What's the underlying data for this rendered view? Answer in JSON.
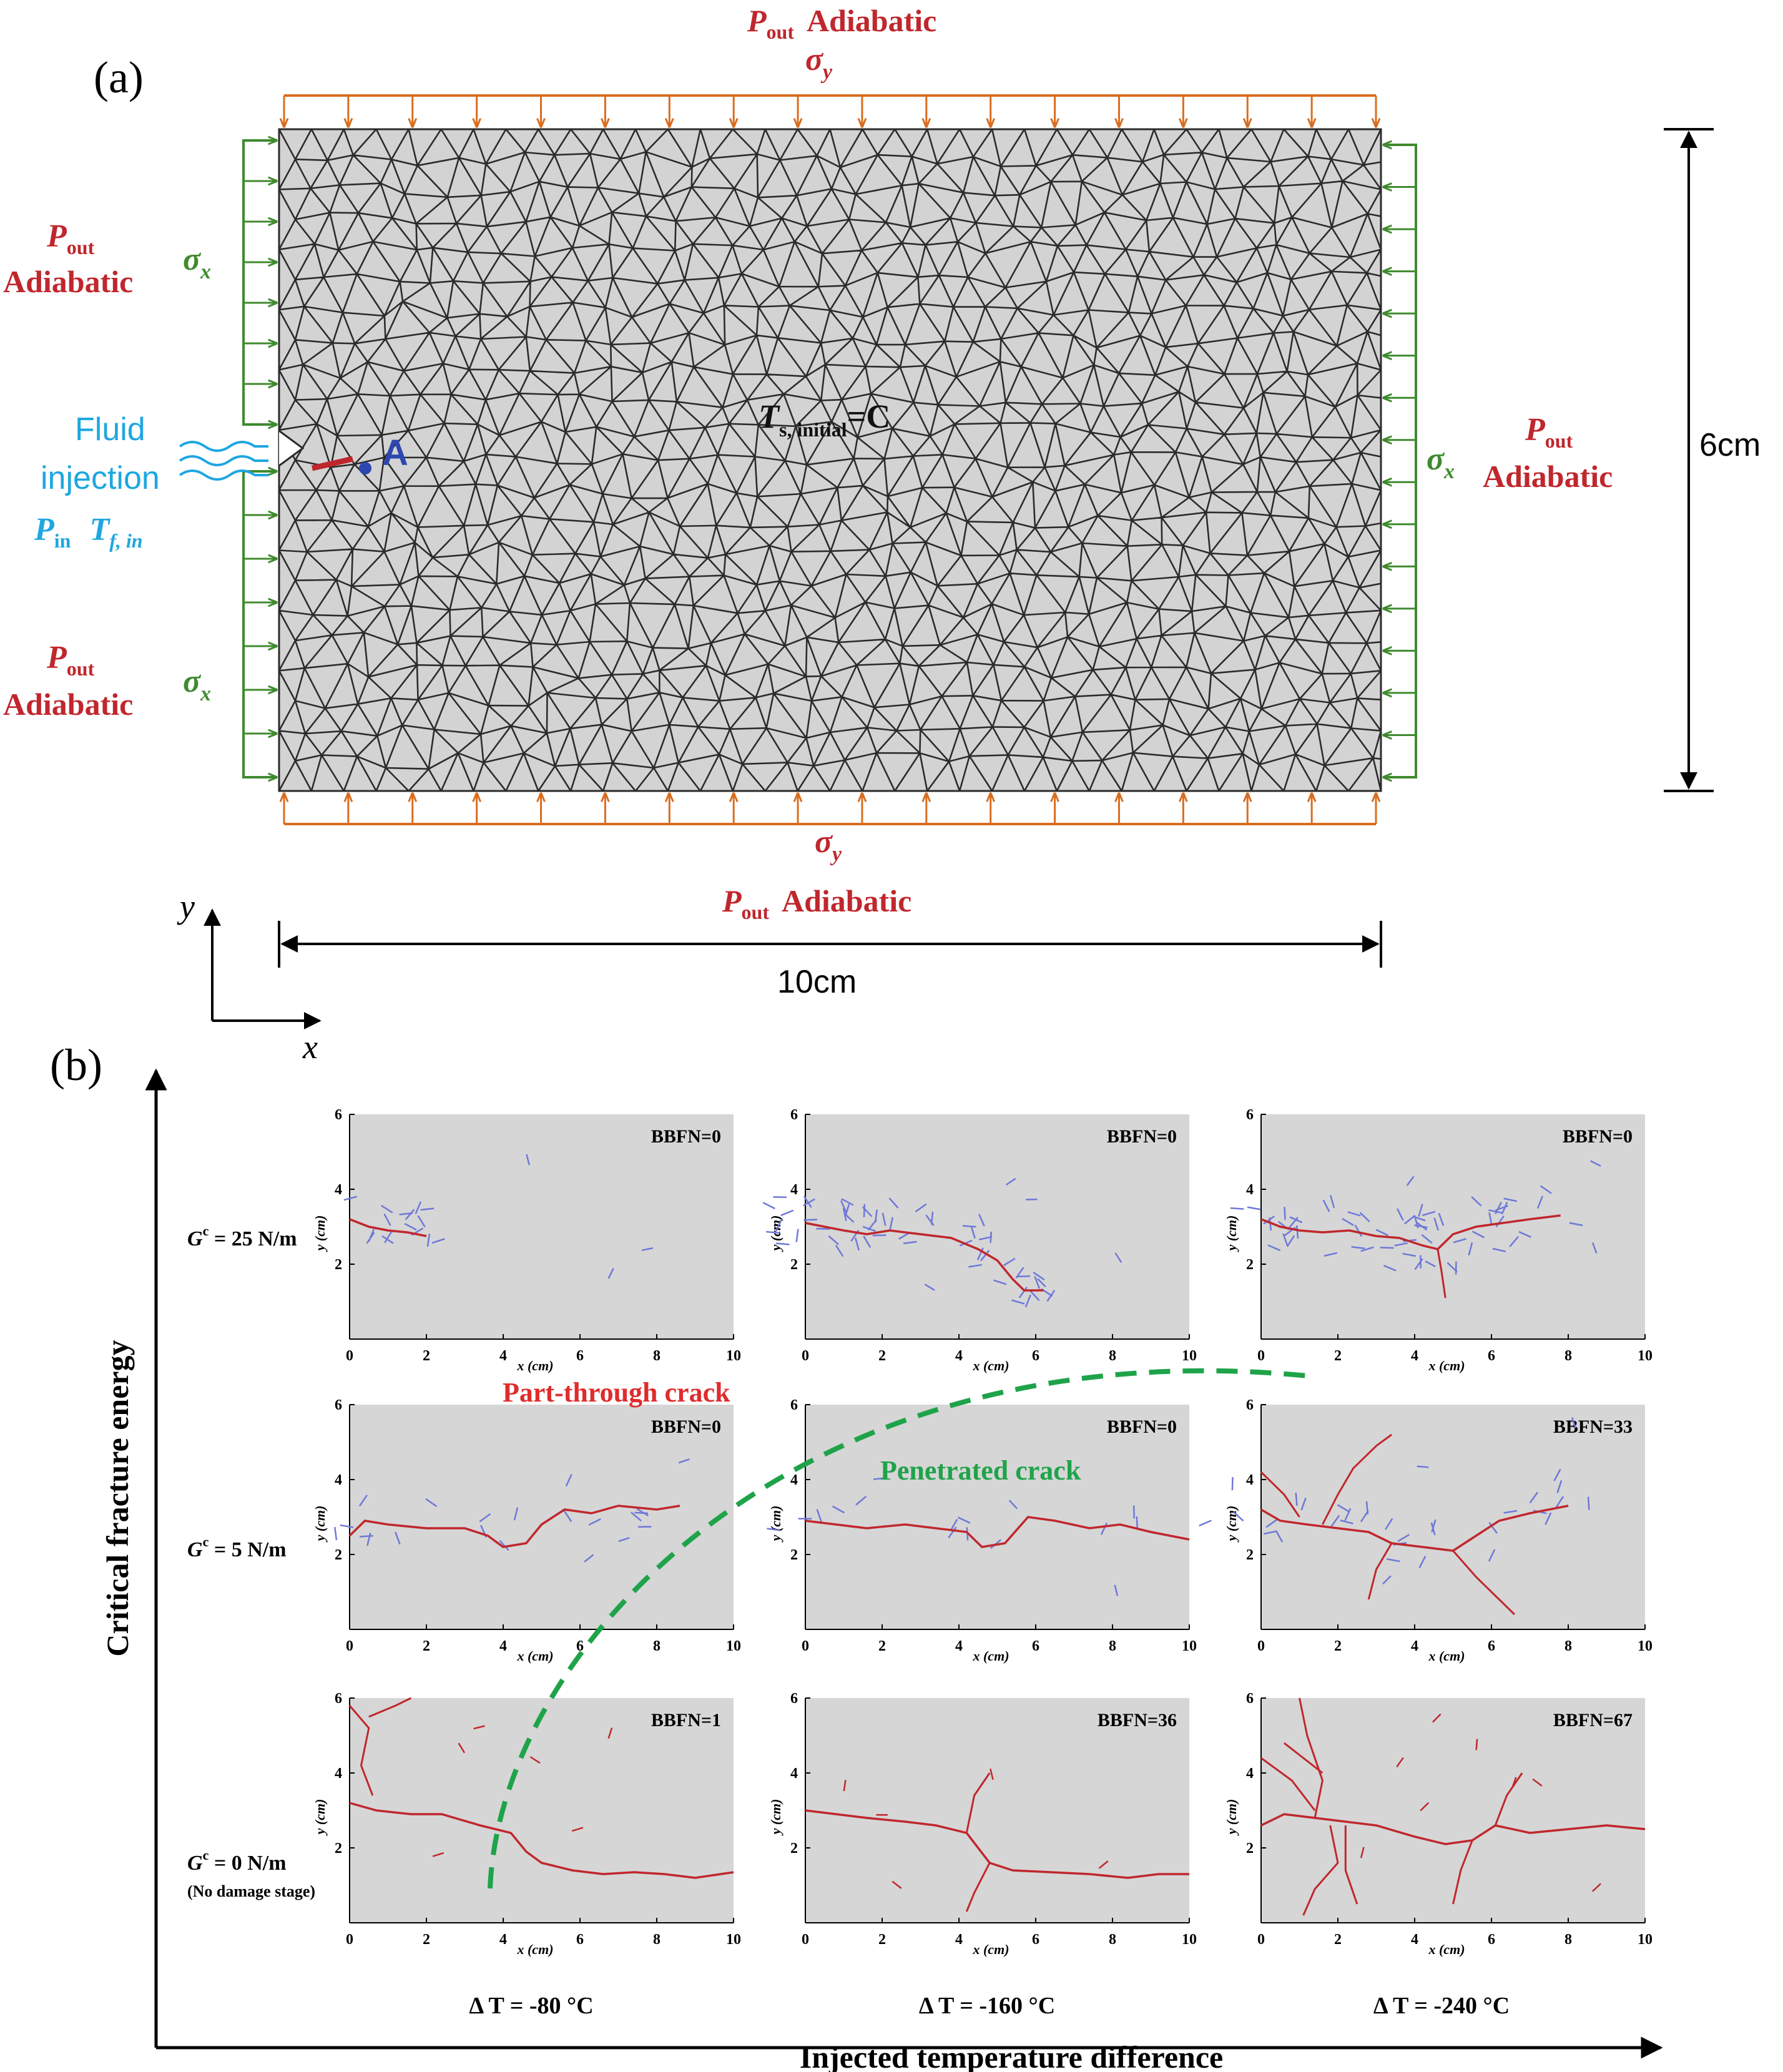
{
  "panel_a": {
    "label": "(a)",
    "top_label": {
      "P": "P",
      "sub": "out",
      "text": "Adiabatic"
    },
    "bottom_label": {
      "P": "P",
      "sub": "out",
      "text": "Adiabatic"
    },
    "sigma_y": "σ",
    "sigma_y_sub": "y",
    "sigma_x": "σ",
    "sigma_x_sub": "x",
    "left_upper": {
      "P": "P",
      "sub": "out",
      "text": "Adiabatic"
    },
    "left_lower": {
      "P": "P",
      "sub": "out",
      "text": "Adiabatic"
    },
    "right": {
      "P": "P",
      "sub": "out",
      "text": "Adiabatic"
    },
    "injection": {
      "line1": "Fluid",
      "line2": "injection",
      "pin": "P",
      "pin_sub": "in",
      "tf": "T",
      "tf_sub": "f, in"
    },
    "point_label": "A",
    "center_label": {
      "T": "T",
      "sub": "s, initial",
      "rest": "=C"
    },
    "height_dim": "6cm",
    "width_dim": "10cm",
    "axis_y": "y",
    "axis_x": "x",
    "colors": {
      "red": "#c0272d",
      "orange": "#d96c1e",
      "green": "#3f8a2e",
      "blue": "#1ea7e0",
      "mesh": "#2b2b2b",
      "gray": "#d3d3d3"
    }
  },
  "panel_b": {
    "label": "(b)",
    "y_axis_title": "Critical fracture energy",
    "x_axis_title": "Injected temperature difference",
    "rows": [
      {
        "G": "G",
        "sup": "c",
        "value": " = 25 N/m",
        "note": ""
      },
      {
        "G": "G",
        "sup": "c",
        "value": " = 5 N/m",
        "note": ""
      },
      {
        "G": "G",
        "sup": "c",
        "value": " = 0 N/m",
        "note": "(No damage stage)"
      }
    ],
    "columns": [
      {
        "label": "Δ T = -80 °C"
      },
      {
        "label": "Δ T = -160 °C"
      },
      {
        "label": "Δ T = -240 °C"
      }
    ],
    "bbfn": [
      [
        "BBFN=0",
        "BBFN=0",
        "BBFN=0"
      ],
      [
        "BBFN=0",
        "BBFN=0",
        "BBFN=33"
      ],
      [
        "BBFN=1",
        "BBFN=36",
        "BBFN=67"
      ]
    ],
    "subplot_axes": {
      "xlabel": "x (cm)",
      "ylabel": "y (cm)",
      "xticks": [
        "0",
        "2",
        "4",
        "6",
        "8",
        "10"
      ],
      "yticks": [
        "2",
        "4",
        "6"
      ]
    },
    "region_labels": {
      "part": "Part-through crack",
      "pen": "Penetrated crack"
    },
    "colors": {
      "crack": "#c0272d",
      "damage": "#6e78d8",
      "boundary": "#1fa34a",
      "region_red": "#e02b2b",
      "region_green": "#1fa34a",
      "plot_bg": "#d6d6d6"
    }
  }
}
